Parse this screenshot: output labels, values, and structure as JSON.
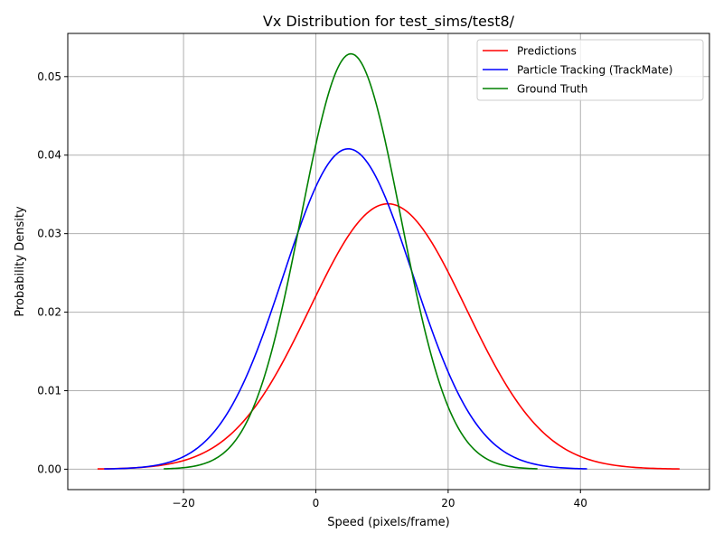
{
  "chart_data": {
    "type": "line",
    "title": "Vx Distribution for test_sims/test8/",
    "xlabel": "Speed (pixels/frame)",
    "ylabel": "Probability Density",
    "xlim": [
      -37.5,
      59.5
    ],
    "ylim": [
      -0.0026,
      0.0555
    ],
    "xticks": [
      -20,
      0,
      20,
      40
    ],
    "xtick_labels": [
      "−20",
      "0",
      "20",
      "40"
    ],
    "yticks": [
      0.0,
      0.01,
      0.02,
      0.03,
      0.04,
      0.05
    ],
    "ytick_labels": [
      "0.00",
      "0.01",
      "0.02",
      "0.03",
      "0.04",
      "0.05"
    ],
    "grid": true,
    "legend_position": "top-right",
    "series": [
      {
        "name": "Predictions",
        "color": "#ff0000",
        "x_range": [
          -33.0,
          55.0
        ],
        "mean": 10.9,
        "std": 11.8,
        "peak_density": 0.0338
      },
      {
        "name": "Particle Tracking (TrackMate)",
        "color": "#0000ff",
        "x_range": [
          -32.0,
          41.0
        ],
        "mean": 4.9,
        "std": 9.78,
        "peak_density": 0.0408
      },
      {
        "name": "Ground Truth",
        "color": "#008000",
        "x_range": [
          -23.0,
          33.5
        ],
        "mean": 5.3,
        "std": 7.55,
        "peak_density": 0.0529
      }
    ]
  }
}
